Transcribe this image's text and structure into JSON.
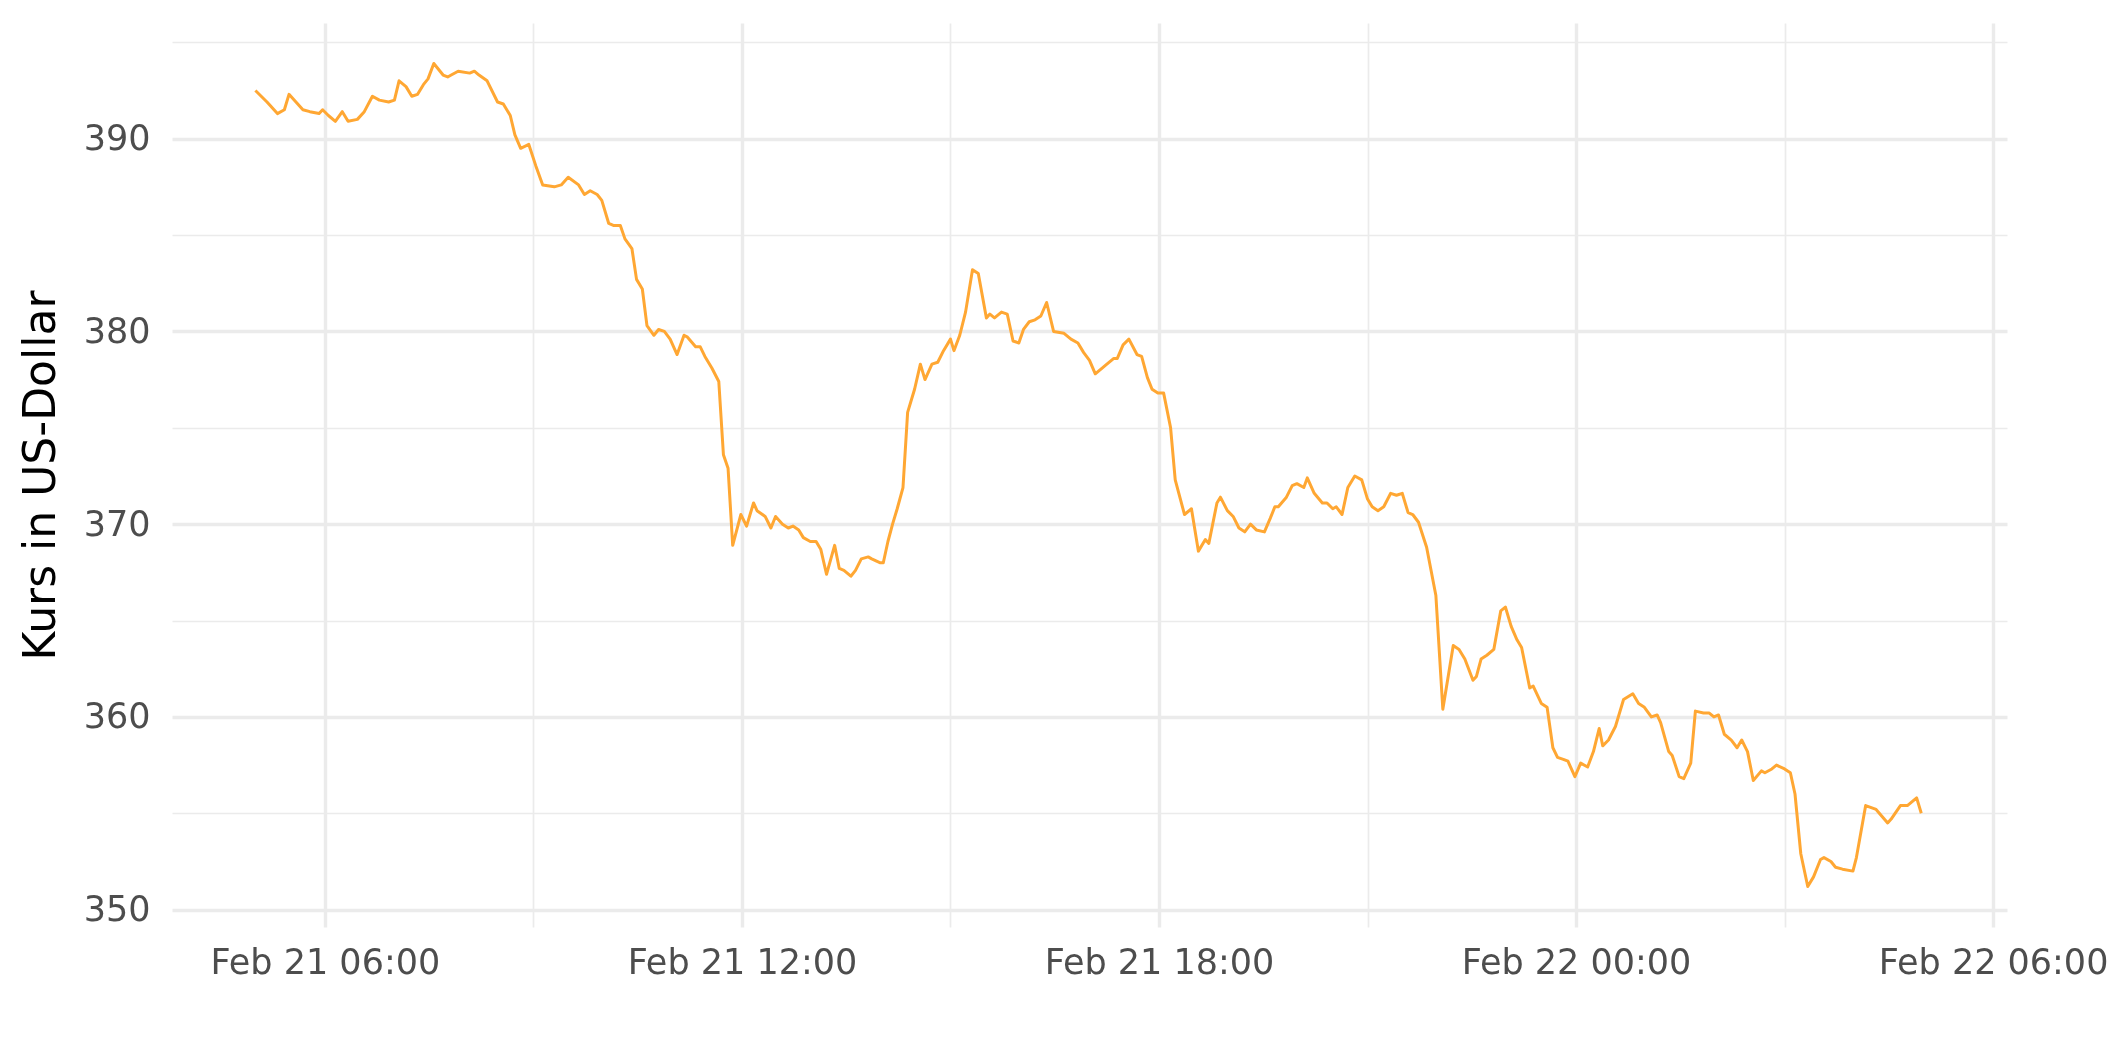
{
  "chart_data": {
    "type": "line",
    "ylabel": "Kurs in US-Dollar",
    "x": [
      "--02-21T05:00",
      "--02-21T05:10",
      "--02-21T05:19",
      "--02-21T05:25",
      "--02-21T05:29",
      "--02-21T05:35",
      "--02-21T05:41",
      "--02-21T05:47",
      "--02-21T05:55",
      "--02-21T05:58",
      "--02-21T06:03",
      "--02-21T06:09",
      "--02-21T06:15",
      "--02-21T06:20",
      "--02-21T06:28",
      "--02-21T06:34",
      "--02-21T06:41",
      "--02-21T06:47",
      "--02-21T06:55",
      "--02-21T07:00",
      "--02-21T07:04",
      "--02-21T07:10",
      "--02-21T07:15",
      "--02-21T07:20",
      "--02-21T07:25",
      "--02-21T07:29",
      "--02-21T07:34",
      "--02-21T07:42",
      "--02-21T07:46",
      "--02-21T07:49",
      "--02-21T07:55",
      "--02-21T08:05",
      "--02-21T08:09",
      "--02-21T08:13",
      "--02-21T08:20",
      "--02-21T08:29",
      "--02-21T08:34",
      "--02-21T08:40",
      "--02-21T08:44",
      "--02-21T08:49",
      "--02-21T08:56",
      "--02-21T09:02",
      "--02-21T09:08",
      "--02-21T09:18",
      "--02-21T09:24",
      "--02-21T09:30",
      "--02-21T09:39",
      "--02-21T09:44",
      "--02-21T09:49",
      "--02-21T09:55",
      "--02-21T09:59",
      "--02-21T10:05",
      "--02-21T10:09",
      "--02-21T10:15",
      "--02-21T10:19",
      "--02-21T10:25",
      "--02-21T10:29",
      "--02-21T10:34",
      "--02-21T10:38",
      "--02-21T10:44",
      "--02-21T10:48",
      "--02-21T10:53",
      "--02-21T10:58",
      "--02-21T11:04",
      "--02-21T11:10",
      "--02-21T11:13",
      "--02-21T11:20",
      "--02-21T11:24",
      "--02-21T11:28",
      "--02-21T11:34",
      "--02-21T11:40",
      "--02-21T11:44",
      "--02-21T11:48",
      "--02-21T11:52",
      "--02-21T11:59",
      "--02-21T12:04",
      "--02-21T12:10",
      "--02-21T12:13",
      "--02-21T12:20",
      "--02-21T12:25",
      "--02-21T12:29",
      "--02-21T12:35",
      "--02-21T12:40",
      "--02-21T12:44",
      "--02-21T12:49",
      "--02-21T12:53",
      "--02-21T12:59",
      "--02-21T13:04",
      "--02-21T13:08",
      "--02-21T13:13",
      "--02-21T13:20",
      "--02-21T13:24",
      "--02-21T13:28",
      "--02-21T13:34",
      "--02-21T13:38",
      "--02-21T13:43",
      "--02-21T13:49",
      "--02-21T13:52",
      "--02-21T13:59",
      "--02-21T14:02",
      "--02-21T14:06",
      "--02-21T14:10",
      "--02-21T14:14",
      "--02-21T14:19",
      "--02-21T14:23",
      "--02-21T14:29",
      "--02-21T14:34",
      "--02-21T14:38",
      "--02-21T14:44",
      "--02-21T14:49",
      "--02-21T14:54",
      "--02-21T15:00",
      "--02-21T15:03",
      "--02-21T15:08",
      "--02-21T15:13",
      "--02-21T15:19",
      "--02-21T15:24",
      "--02-21T15:31",
      "--02-21T15:34",
      "--02-21T15:38",
      "--02-21T15:44",
      "--02-21T15:49",
      "--02-21T15:54",
      "--02-21T15:59",
      "--02-21T16:03",
      "--02-21T16:08",
      "--02-21T16:13",
      "--02-21T16:18",
      "--02-21T16:23",
      "--02-21T16:29",
      "--02-21T16:38",
      "--02-21T16:44",
      "--02-21T16:50",
      "--02-21T16:55",
      "--02-21T17:00",
      "--02-21T17:05",
      "--02-21T17:15",
      "--02-21T17:21",
      "--02-21T17:24",
      "--02-21T17:29",
      "--02-21T17:34",
      "--02-21T17:41",
      "--02-21T17:45",
      "--02-21T17:50",
      "--02-21T17:54",
      "--02-21T17:59",
      "--02-21T18:04",
      "--02-21T18:10",
      "--02-21T18:14",
      "--02-21T18:22",
      "--02-21T18:28",
      "--02-21T18:34",
      "--02-21T18:40",
      "--02-21T18:43",
      "--02-21T18:50",
      "--02-21T18:53",
      "--02-21T18:59",
      "--02-21T19:04",
      "--02-21T19:09",
      "--02-21T19:14",
      "--02-21T19:19",
      "--02-21T19:24",
      "--02-21T19:31",
      "--02-21T19:36",
      "--02-21T19:40",
      "--02-21T19:43",
      "--02-21T19:50",
      "--02-21T19:55",
      "--02-21T19:59",
      "--02-21T20:05",
      "--02-21T20:08",
      "--02-21T20:14",
      "--02-21T20:21",
      "--02-21T20:25",
      "--02-21T20:30",
      "--02-21T20:33",
      "--02-21T20:38",
      "--02-21T20:43",
      "--02-21T20:49",
      "--02-21T20:55",
      "--02-21T21:00",
      "--02-21T21:04",
      "--02-21T21:09",
      "--02-21T21:14",
      "--02-21T21:20",
      "--02-21T21:25",
      "--02-21T21:30",
      "--02-21T21:35",
      "--02-21T21:39",
      "--02-21T21:44",
      "--02-21T21:51",
      "--02-21T21:59",
      "--02-21T22:05",
      "--02-21T22:14",
      "--02-21T22:19",
      "--02-21T22:24",
      "--02-21T22:31",
      "--02-21T22:34",
      "--02-21T22:38",
      "--02-21T22:43",
      "--02-21T22:49",
      "--02-21T22:55",
      "--02-21T22:59",
      "--02-21T23:04",
      "--02-21T23:09",
      "--02-21T23:13",
      "--02-21T23:20",
      "--02-21T23:23",
      "--02-21T23:30",
      "--02-21T23:35",
      "--02-21T23:40",
      "--02-21T23:44",
      "--02-21T23:49",
      "--02-21T23:53",
      "--02-21T23:59",
      "--02-22T00:04",
      "--02-22T00:10",
      "--02-22T00:15",
      "--02-22T00:20",
      "--02-22T00:23",
      "--02-22T00:28",
      "--02-22T00:34",
      "--02-22T00:41",
      "--02-22T00:49",
      "--02-22T00:54",
      "--02-22T00:59",
      "--02-22T01:05",
      "--02-22T01:10",
      "--02-22T01:13",
      "--02-22T01:20",
      "--02-22T01:23",
      "--02-22T01:29",
      "--02-22T01:33",
      "--02-22T01:39",
      "--02-22T01:43",
      "--02-22T01:50",
      "--02-22T01:55",
      "--02-22T01:59",
      "--02-22T02:03",
      "--02-22T02:08",
      "--02-22T02:14",
      "--02-22T02:19",
      "--02-22T02:23",
      "--02-22T02:28",
      "--02-22T02:33",
      "--02-22T02:40",
      "--02-22T02:43",
      "--02-22T02:49",
      "--02-22T02:53",
      "--02-22T03:00",
      "--02-22T03:05",
      "--02-22T03:09",
      "--02-22T03:14",
      "--02-22T03:20",
      "--02-22T03:25",
      "--02-22T03:31",
      "--02-22T03:34",
      "--02-22T03:40",
      "--02-22T03:44",
      "--02-22T03:50",
      "--02-22T03:59",
      "--02-22T04:02",
      "--02-22T04:10",
      "--02-22T04:19",
      "--02-22T04:29",
      "--02-22T04:32",
      "--02-22T04:40",
      "--02-22T04:46",
      "--02-22T04:54",
      "--02-22T04:58"
    ],
    "series": [
      {
        "color": "#ffa733",
        "values": [
          392.5,
          391.9,
          391.3,
          391.5,
          392.3,
          391.9,
          391.5,
          391.4,
          391.3,
          391.5,
          391.2,
          390.9,
          391.4,
          390.9,
          391.0,
          391.4,
          392.2,
          392.0,
          391.9,
          392.0,
          393.0,
          392.7,
          392.2,
          392.3,
          392.8,
          393.1,
          393.9,
          393.3,
          393.2,
          393.3,
          393.5,
          393.4,
          393.5,
          393.3,
          393.0,
          391.9,
          391.8,
          391.2,
          390.2,
          389.5,
          389.7,
          388.6,
          387.6,
          387.5,
          387.6,
          388.0,
          387.6,
          387.1,
          387.3,
          387.1,
          386.8,
          385.6,
          385.5,
          385.5,
          384.8,
          384.3,
          382.7,
          382.2,
          380.3,
          379.8,
          380.1,
          380.0,
          379.6,
          378.8,
          379.8,
          379.7,
          379.2,
          379.2,
          378.7,
          378.1,
          377.4,
          373.6,
          372.9,
          368.9,
          370.5,
          369.9,
          371.1,
          370.7,
          370.4,
          369.8,
          370.4,
          370.0,
          369.8,
          369.9,
          369.7,
          369.3,
          369.1,
          369.1,
          368.7,
          367.4,
          368.9,
          367.7,
          367.6,
          367.3,
          367.6,
          368.2,
          368.3,
          368.2,
          368.0,
          368.0,
          369.1,
          370.0,
          370.8,
          371.9,
          375.8,
          377.0,
          378.3,
          377.5,
          378.3,
          378.4,
          379.0,
          379.6,
          379.0,
          379.8,
          381.0,
          383.2,
          383.0,
          380.7,
          380.9,
          380.7,
          381.0,
          380.9,
          379.5,
          379.4,
          380.1,
          380.5,
          380.6,
          380.8,
          381.5,
          380.0,
          379.9,
          379.6,
          379.4,
          378.9,
          378.5,
          377.8,
          378.3,
          378.6,
          378.6,
          379.3,
          379.6,
          378.8,
          378.7,
          377.6,
          377.0,
          376.8,
          376.8,
          375.0,
          372.3,
          370.5,
          370.8,
          368.6,
          369.2,
          369.0,
          371.1,
          371.4,
          370.7,
          370.4,
          369.8,
          369.6,
          370.0,
          369.7,
          369.6,
          370.3,
          370.9,
          370.9,
          371.4,
          372.0,
          372.1,
          371.9,
          372.4,
          371.6,
          371.1,
          371.1,
          370.8,
          370.9,
          370.5,
          371.9,
          372.5,
          372.3,
          371.3,
          370.9,
          370.7,
          370.9,
          371.6,
          371.5,
          371.6,
          370.6,
          370.5,
          370.1,
          368.8,
          366.3,
          360.4,
          363.7,
          363.5,
          363.0,
          361.9,
          362.1,
          363.0,
          363.2,
          363.5,
          365.5,
          365.7,
          364.7,
          364.0,
          363.6,
          361.5,
          361.6,
          360.7,
          360.5,
          358.4,
          357.9,
          357.8,
          357.7,
          356.9,
          357.6,
          357.4,
          358.2,
          359.4,
          358.5,
          358.8,
          359.5,
          360.9,
          361.2,
          360.7,
          360.5,
          360.0,
          360.1,
          359.7,
          358.2,
          358.0,
          356.9,
          356.8,
          357.6,
          360.3,
          360.2,
          360.2,
          360.0,
          360.1,
          359.1,
          358.8,
          358.4,
          358.8,
          358.2,
          356.7,
          357.2,
          357.1,
          357.3,
          357.5,
          357.3,
          357.1,
          356.0,
          352.9,
          351.2,
          351.7,
          352.6,
          352.7,
          352.5,
          352.2,
          352.1,
          352.0,
          352.7,
          355.4,
          355.2,
          354.5,
          354.7,
          355.4,
          355.4,
          355.8,
          355.0
        ]
      }
    ],
    "xlim": [
      "--02-21T03:48",
      "--02-22T06:12"
    ],
    "xticks": [
      {
        "value": "--02-21T06:00",
        "label": "Feb 21 06:00"
      },
      {
        "value": "--02-21T09:00",
        "label": null
      },
      {
        "value": "--02-21T12:00",
        "label": "Feb 21 12:00"
      },
      {
        "value": "--02-21T15:00",
        "label": null
      },
      {
        "value": "--02-21T18:00",
        "label": "Feb 21 18:00"
      },
      {
        "value": "--02-21T21:00",
        "label": null
      },
      {
        "value": "--02-22T00:00",
        "label": "Feb 22 00:00"
      },
      {
        "value": "--02-22T03:00",
        "label": null
      },
      {
        "value": "--02-22T06:00",
        "label": "Feb 22 06:00"
      }
    ],
    "ylim": [
      349.1,
      396
    ],
    "yticks": [
      350,
      {
        "value": 355,
        "label": null
      },
      360,
      {
        "value": 365,
        "label": null
      },
      370,
      {
        "value": 375,
        "label": null
      },
      380,
      {
        "value": 385,
        "label": null
      },
      390,
      {
        "value": 395,
        "label": null
      }
    ],
    "grid": true,
    "line_style": "solid"
  }
}
